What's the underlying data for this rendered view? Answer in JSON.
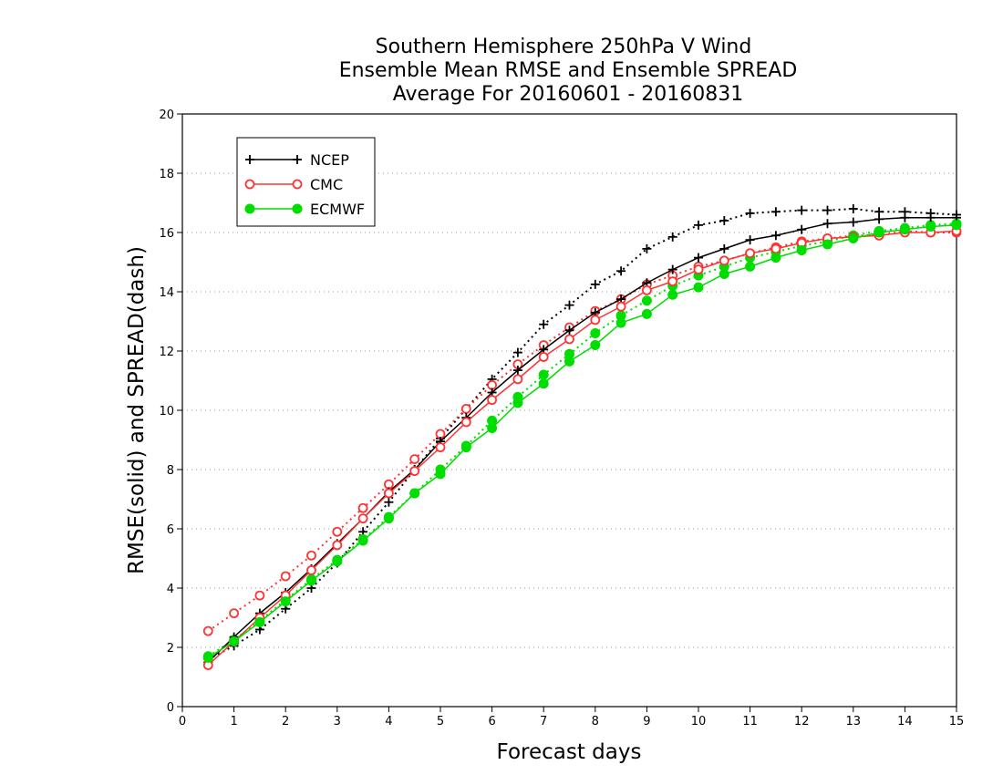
{
  "chart_data": {
    "type": "line",
    "title": [
      "Southern Hemisphere 250hPa V Wind",
      "Ensemble Mean RMSE and Ensemble SPREAD",
      "Average For 20160601 - 20160831"
    ],
    "xlabel": "Forecast days",
    "ylabel": "RMSE(solid) and SPREAD(dash)",
    "xlim": [
      0,
      15
    ],
    "ylim": [
      0,
      20
    ],
    "xticks": [
      0,
      1,
      2,
      3,
      4,
      5,
      6,
      7,
      8,
      9,
      10,
      11,
      12,
      13,
      14,
      15
    ],
    "yticks": [
      0,
      2,
      4,
      6,
      8,
      10,
      12,
      14,
      16,
      18,
      20
    ],
    "grid": "horizontal dotted",
    "legend": {
      "placement": "top-left",
      "entries": [
        "NCEP",
        "CMC",
        "ECMWF"
      ]
    },
    "x": [
      0.5,
      1,
      1.5,
      2,
      2.5,
      3,
      3.5,
      4,
      4.5,
      5,
      5.5,
      6,
      6.5,
      7,
      7.5,
      8,
      8.5,
      9,
      9.5,
      10,
      10.5,
      11,
      11.5,
      12,
      12.5,
      13,
      13.5,
      14,
      14.5,
      15
    ],
    "series": [
      {
        "name": "NCEP",
        "kind": "RMSE",
        "style": "solid",
        "marker": "plus",
        "color": "#000000",
        "values": [
          1.5,
          2.35,
          3.15,
          3.85,
          4.65,
          5.5,
          6.35,
          7.25,
          8.0,
          8.95,
          9.75,
          10.6,
          11.35,
          12.05,
          12.7,
          13.3,
          13.75,
          14.3,
          14.75,
          15.15,
          15.45,
          15.75,
          15.9,
          16.1,
          16.3,
          16.35,
          16.45,
          16.5,
          16.5,
          16.5
        ]
      },
      {
        "name": "NCEP",
        "kind": "SPREAD",
        "style": "dash",
        "marker": "plus",
        "color": "#000000",
        "values": [
          1.6,
          2.05,
          2.6,
          3.3,
          4.0,
          4.85,
          5.9,
          6.9,
          8.0,
          9.05,
          10.05,
          11.05,
          11.95,
          12.9,
          13.55,
          14.25,
          14.7,
          15.45,
          15.85,
          16.25,
          16.4,
          16.65,
          16.7,
          16.75,
          16.75,
          16.8,
          16.7,
          16.7,
          16.65,
          16.6
        ]
      },
      {
        "name": "CMC",
        "kind": "RMSE",
        "style": "solid",
        "marker": "open-circle",
        "color": "#ff3333",
        "values": [
          1.4,
          2.2,
          3.0,
          3.75,
          4.6,
          5.45,
          6.35,
          7.2,
          7.95,
          8.75,
          9.6,
          10.35,
          11.05,
          11.8,
          12.4,
          13.05,
          13.5,
          14.05,
          14.35,
          14.75,
          15.05,
          15.3,
          15.45,
          15.65,
          15.8,
          15.85,
          15.9,
          16.0,
          16.0,
          16.05
        ]
      },
      {
        "name": "CMC",
        "kind": "SPREAD",
        "style": "dash",
        "marker": "open-circle",
        "color": "#ff3333",
        "values": [
          2.55,
          3.15,
          3.75,
          4.4,
          5.1,
          5.9,
          6.7,
          7.5,
          8.35,
          9.2,
          10.05,
          10.85,
          11.55,
          12.2,
          12.8,
          13.35,
          13.75,
          14.25,
          14.55,
          14.85,
          15.05,
          15.3,
          15.5,
          15.7,
          15.8,
          15.9,
          15.9,
          16.05,
          16.0,
          16.0
        ]
      },
      {
        "name": "ECMWF",
        "kind": "RMSE",
        "style": "solid",
        "marker": "filled-circle",
        "color": "#00dd00",
        "values": [
          1.65,
          2.2,
          2.85,
          3.55,
          4.25,
          4.9,
          5.6,
          6.35,
          7.2,
          7.85,
          8.75,
          9.4,
          10.25,
          10.9,
          11.65,
          12.2,
          12.95,
          13.25,
          13.9,
          14.15,
          14.6,
          14.85,
          15.15,
          15.4,
          15.6,
          15.8,
          16.0,
          16.1,
          16.2,
          16.25
        ]
      },
      {
        "name": "ECMWF",
        "kind": "SPREAD",
        "style": "dash",
        "marker": "filled-circle",
        "color": "#00dd00",
        "values": [
          1.7,
          2.25,
          2.9,
          3.6,
          4.3,
          4.95,
          5.65,
          6.4,
          7.2,
          8.0,
          8.8,
          9.65,
          10.45,
          11.2,
          11.9,
          12.6,
          13.2,
          13.7,
          14.2,
          14.55,
          14.85,
          15.15,
          15.35,
          15.55,
          15.7,
          15.9,
          16.05,
          16.15,
          16.25,
          16.3
        ]
      }
    ]
  }
}
